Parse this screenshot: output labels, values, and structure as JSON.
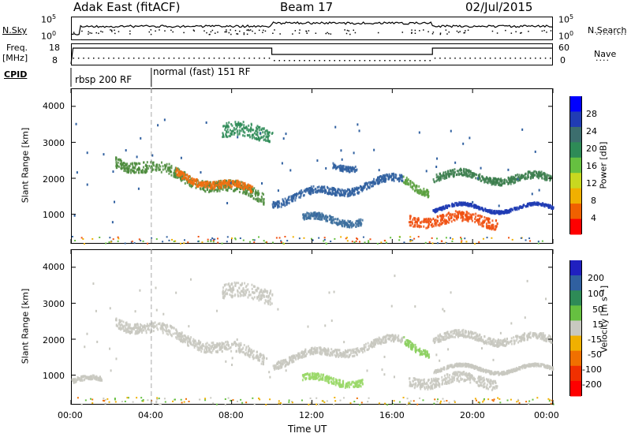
{
  "header": {
    "site": "Adak East (fitACF)",
    "beam": "Beam 17",
    "date": "02/Jul/2015"
  },
  "top_panels": {
    "nsky_label": "N.Sky",
    "nsky_ticks": [
      "10^5",
      "10^0"
    ],
    "nsearch_label": "N.Search",
    "nsearch_ticks": [
      "10^5",
      "10^0"
    ],
    "freq_label": "Freq.",
    "freq_unit": "[MHz]",
    "freq_ticks": [
      "18",
      "8"
    ],
    "nave_label": "Nave",
    "nave_ticks": [
      "60",
      "0"
    ],
    "cpid_label": "CPID",
    "cpid_modes": [
      {
        "label": "rbsp 200 RF"
      },
      {
        "label": "normal (fast) 151 RF"
      }
    ]
  },
  "chart_data": [
    {
      "type": "heatmap",
      "name": "power",
      "ylabel": "Slant Range [km]",
      "xlabel": "Time UT",
      "yticks": [
        "4000",
        "3000",
        "2000",
        "1000"
      ],
      "ylim": [
        180,
        4500
      ],
      "xlim": [
        0,
        24
      ],
      "xticks": [
        "00:00",
        "04:00",
        "08:00",
        "12:00",
        "16:00",
        "20:00",
        "00:00"
      ],
      "colorbar": {
        "label": "Power [dB]",
        "ticks": [
          "28",
          "24",
          "20",
          "16",
          "12",
          "8",
          "4"
        ],
        "colors": [
          "#0000ff",
          "#203cb4",
          "#3c6e6e",
          "#2e8b57",
          "#66c040",
          "#c8d820",
          "#f0b000",
          "#f06000",
          "#ff0000"
        ]
      },
      "bands": [
        {
          "t0": 2.2,
          "t1": 9.6,
          "r0": 2550,
          "r1": 1500,
          "w": 300,
          "color": "#4a8a3a"
        },
        {
          "t0": 5.2,
          "t1": 9.0,
          "r0": 2150,
          "r1": 1650,
          "w": 200,
          "color": "#f07010"
        },
        {
          "t0": 10.0,
          "t1": 16.5,
          "r0": 1400,
          "r1": 2000,
          "w": 200,
          "color": "#3060a0"
        },
        {
          "t0": 13.0,
          "t1": 14.2,
          "r0": 2400,
          "r1": 2400,
          "w": 150,
          "color": "#3060a0"
        },
        {
          "t0": 16.5,
          "t1": 17.8,
          "r0": 2000,
          "r1": 1700,
          "w": 200,
          "color": "#5aa040"
        },
        {
          "t0": 11.5,
          "t1": 14.5,
          "r0": 880,
          "r1": 880,
          "w": 180,
          "color": "#3c6e9e"
        },
        {
          "t0": 16.8,
          "t1": 21.2,
          "r0": 900,
          "r1": 850,
          "w": 280,
          "color": "#f05010"
        },
        {
          "t0": 18.0,
          "t1": 24.0,
          "r0": 1200,
          "r1": 1200,
          "w": 80,
          "color": "#203cb4"
        },
        {
          "t0": 18.0,
          "t1": 23.9,
          "r0": 2100,
          "r1": 2000,
          "w": 200,
          "color": "#3c7e4e"
        },
        {
          "t0": 7.5,
          "t1": 10.0,
          "r0": 3300,
          "r1": 3300,
          "w": 400,
          "color": "#2e8b57"
        }
      ]
    },
    {
      "type": "heatmap",
      "name": "velocity",
      "ylabel": "Slant Range [km]",
      "xlabel": "Time UT",
      "yticks": [
        "4000",
        "3000",
        "2000",
        "1000"
      ],
      "ylim": [
        180,
        4500
      ],
      "xlim": [
        0,
        24
      ],
      "xticks": [
        "00:00",
        "04:00",
        "08:00",
        "12:00",
        "16:00",
        "20:00",
        "00:00"
      ],
      "colorbar": {
        "label": "Velocity [m s⁻¹]",
        "ticks": [
          "200",
          "100",
          "50",
          "15",
          "-15",
          "-50",
          "-100",
          "-200"
        ],
        "colors": [
          "#2020c0",
          "#3060a0",
          "#2e8b57",
          "#66c040",
          "#c8c8c0",
          "#f0b000",
          "#f07000",
          "#f03000",
          "#ff0000"
        ]
      },
      "bands": [
        {
          "t0": 2.2,
          "t1": 9.6,
          "r0": 2550,
          "r1": 1500,
          "w": 280,
          "color": "#c8c8c0"
        },
        {
          "t0": 10.0,
          "t1": 16.5,
          "r0": 1400,
          "r1": 2000,
          "w": 200,
          "color": "#c8c8c0"
        },
        {
          "t0": 16.5,
          "t1": 17.8,
          "r0": 2000,
          "r1": 1700,
          "w": 200,
          "color": "#8cd060"
        },
        {
          "t0": 11.5,
          "t1": 14.5,
          "r0": 880,
          "r1": 880,
          "w": 180,
          "color": "#9ad868"
        },
        {
          "t0": 16.8,
          "t1": 21.2,
          "r0": 900,
          "r1": 850,
          "w": 280,
          "color": "#c8c8c0"
        },
        {
          "t0": 18.0,
          "t1": 24.0,
          "r0": 1200,
          "r1": 1200,
          "w": 80,
          "color": "#c8c8c0"
        },
        {
          "t0": 18.0,
          "t1": 23.9,
          "r0": 2100,
          "r1": 2000,
          "w": 200,
          "color": "#c8c8c0"
        },
        {
          "t0": 7.5,
          "t1": 10.0,
          "r0": 3300,
          "r1": 3300,
          "w": 400,
          "color": "#c8c8c0"
        },
        {
          "t0": 0.0,
          "t1": 1.5,
          "r0": 850,
          "r1": 850,
          "w": 120,
          "color": "#c8c8c0"
        }
      ]
    }
  ]
}
